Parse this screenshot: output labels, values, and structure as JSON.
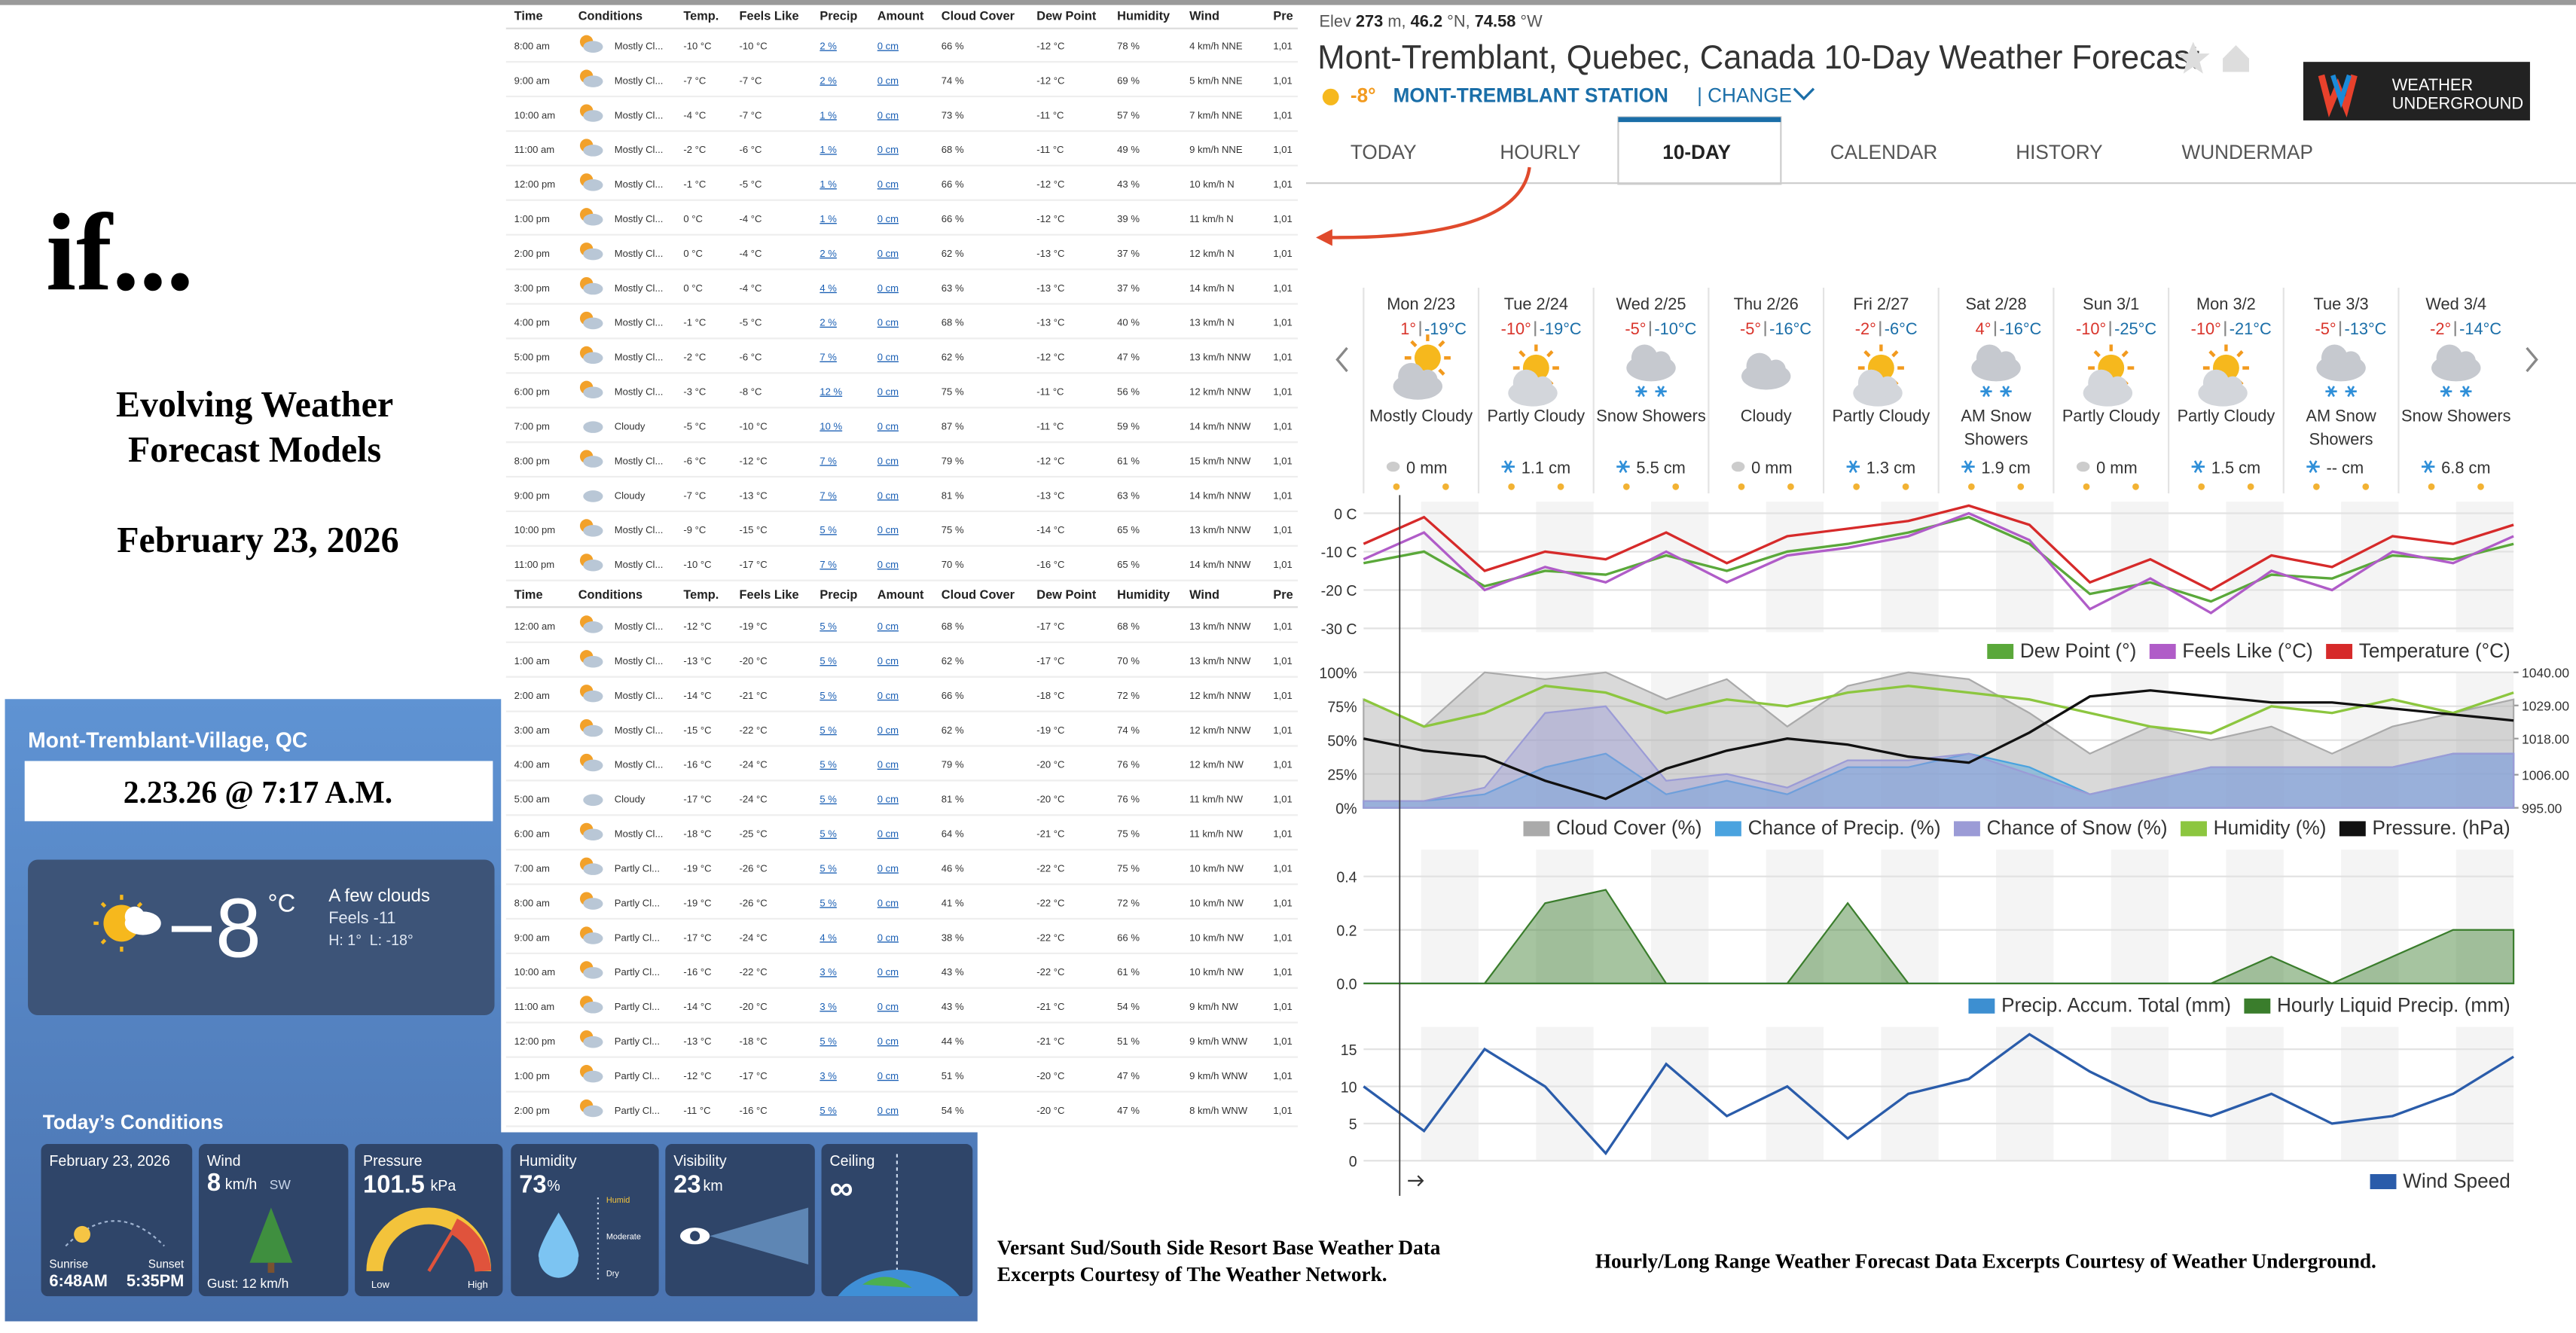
{
  "intro": {
    "heading": "if...",
    "subtitle_line1": "Evolving Weather",
    "subtitle_line2": "Forecast Models",
    "date": "February 23, 2026"
  },
  "twn_widget": {
    "location": "Mont-Tremblant-Village, QC",
    "timestamp": "2.23.26 @ 7:17 A.M.",
    "temperature": "−8",
    "unit": "°C",
    "condition": "A few clouds",
    "feels": "Feels -11",
    "high": "H: 1°",
    "low": "L: -18°",
    "section_title": "Today’s Conditions",
    "date_card": {
      "date": "February 23, 2026",
      "sunrise_label": "Sunrise",
      "sunrise": "6:48AM",
      "sunset_label": "Sunset",
      "sunset": "5:35PM"
    },
    "wind_card": {
      "label": "Wind",
      "speed": "8",
      "unit": "km/h",
      "direction": "SW",
      "gust": "Gust: 12 km/h"
    },
    "pressure_card": {
      "label": "Pressure",
      "value": "101.5",
      "unit": "kPa",
      "low": "Low",
      "high": "High"
    },
    "humidity_card": {
      "label": "Humidity",
      "value": "73",
      "unit": "%",
      "scale_high": "Humid",
      "scale_mid": "Moderate",
      "scale_low": "Dry"
    },
    "visibility_card": {
      "label": "Visibility",
      "value": "23",
      "unit": "km"
    },
    "ceiling_card": {
      "label": "Ceiling",
      "value": "∞"
    }
  },
  "hourly_table": {
    "headers": [
      "Time",
      "Conditions",
      "Temp.",
      "Feels Like",
      "Precip",
      "Amount",
      "Cloud Cover",
      "Dew Point",
      "Humidity",
      "Wind",
      "Pre"
    ],
    "sections": [
      {
        "rows": [
          [
            "8:00 am",
            "Mostly Cl...",
            "-10 °C",
            "-10 °C",
            "2 %",
            "0 cm",
            "66 %",
            "-12 °C",
            "78 %",
            "4 km/h NNE",
            "1,01"
          ],
          [
            "9:00 am",
            "Mostly Cl...",
            "-7 °C",
            "-7 °C",
            "2 %",
            "0 cm",
            "74 %",
            "-12 °C",
            "69 %",
            "5 km/h NNE",
            "1,01"
          ],
          [
            "10:00 am",
            "Mostly Cl...",
            "-4 °C",
            "-7 °C",
            "1 %",
            "0 cm",
            "73 %",
            "-11 °C",
            "57 %",
            "7 km/h NNE",
            "1,01"
          ],
          [
            "11:00 am",
            "Mostly Cl...",
            "-2 °C",
            "-6 °C",
            "1 %",
            "0 cm",
            "68 %",
            "-11 °C",
            "49 %",
            "9 km/h NNE",
            "1,01"
          ],
          [
            "12:00 pm",
            "Mostly Cl...",
            "-1 °C",
            "-5 °C",
            "1 %",
            "0 cm",
            "66 %",
            "-12 °C",
            "43 %",
            "10 km/h N",
            "1,01"
          ],
          [
            "1:00 pm",
            "Mostly Cl...",
            "0 °C",
            "-4 °C",
            "1 %",
            "0 cm",
            "66 %",
            "-12 °C",
            "39 %",
            "11 km/h N",
            "1,01"
          ],
          [
            "2:00 pm",
            "Mostly Cl...",
            "0 °C",
            "-4 °C",
            "2 %",
            "0 cm",
            "62 %",
            "-13 °C",
            "37 %",
            "12 km/h N",
            "1,01"
          ],
          [
            "3:00 pm",
            "Mostly Cl...",
            "0 °C",
            "-4 °C",
            "4 %",
            "0 cm",
            "63 %",
            "-13 °C",
            "37 %",
            "14 km/h N",
            "1,01"
          ],
          [
            "4:00 pm",
            "Mostly Cl...",
            "-1 °C",
            "-5 °C",
            "2 %",
            "0 cm",
            "68 %",
            "-13 °C",
            "40 %",
            "13 km/h N",
            "1,01"
          ],
          [
            "5:00 pm",
            "Mostly Cl...",
            "-2 °C",
            "-6 °C",
            "7 %",
            "0 cm",
            "62 %",
            "-12 °C",
            "47 %",
            "13 km/h NNW",
            "1,01"
          ],
          [
            "6:00 pm",
            "Mostly Cl...",
            "-3 °C",
            "-8 °C",
            "12 %",
            "0 cm",
            "75 %",
            "-11 °C",
            "56 %",
            "12 km/h NNW",
            "1,01"
          ],
          [
            "7:00 pm",
            "Cloudy",
            "-5 °C",
            "-10 °C",
            "10 %",
            "0 cm",
            "87 %",
            "-11 °C",
            "59 %",
            "14 km/h NNW",
            "1,01"
          ],
          [
            "8:00 pm",
            "Mostly Cl...",
            "-6 °C",
            "-12 °C",
            "7 %",
            "0 cm",
            "79 %",
            "-12 °C",
            "61 %",
            "15 km/h NNW",
            "1,01"
          ],
          [
            "9:00 pm",
            "Cloudy",
            "-7 °C",
            "-13 °C",
            "7 %",
            "0 cm",
            "81 %",
            "-13 °C",
            "63 %",
            "14 km/h NNW",
            "1,01"
          ],
          [
            "10:00 pm",
            "Mostly Cl...",
            "-9 °C",
            "-15 °C",
            "5 %",
            "0 cm",
            "75 %",
            "-14 °C",
            "65 %",
            "13 km/h NNW",
            "1,01"
          ],
          [
            "11:00 pm",
            "Mostly Cl...",
            "-10 °C",
            "-17 °C",
            "7 %",
            "0 cm",
            "70 %",
            "-16 °C",
            "65 %",
            "14 km/h NNW",
            "1,01"
          ]
        ]
      },
      {
        "rows": [
          [
            "12:00 am",
            "Mostly Cl...",
            "-12 °C",
            "-19 °C",
            "5 %",
            "0 cm",
            "68 %",
            "-17 °C",
            "68 %",
            "13 km/h NNW",
            "1,01"
          ],
          [
            "1:00 am",
            "Mostly Cl...",
            "-13 °C",
            "-20 °C",
            "5 %",
            "0 cm",
            "62 %",
            "-17 °C",
            "70 %",
            "13 km/h NNW",
            "1,01"
          ],
          [
            "2:00 am",
            "Mostly Cl...",
            "-14 °C",
            "-21 °C",
            "5 %",
            "0 cm",
            "66 %",
            "-18 °C",
            "72 %",
            "12 km/h NNW",
            "1,01"
          ],
          [
            "3:00 am",
            "Mostly Cl...",
            "-15 °C",
            "-22 °C",
            "5 %",
            "0 cm",
            "62 %",
            "-19 °C",
            "74 %",
            "12 km/h NNW",
            "1,01"
          ],
          [
            "4:00 am",
            "Mostly Cl...",
            "-16 °C",
            "-24 °C",
            "5 %",
            "0 cm",
            "79 %",
            "-20 °C",
            "76 %",
            "12 km/h NW",
            "1,01"
          ],
          [
            "5:00 am",
            "Cloudy",
            "-17 °C",
            "-24 °C",
            "5 %",
            "0 cm",
            "81 %",
            "-20 °C",
            "76 %",
            "11 km/h NW",
            "1,01"
          ],
          [
            "6:00 am",
            "Mostly Cl...",
            "-18 °C",
            "-25 °C",
            "5 %",
            "0 cm",
            "64 %",
            "-21 °C",
            "75 %",
            "11 km/h NW",
            "1,01"
          ],
          [
            "7:00 am",
            "Partly Cl...",
            "-19 °C",
            "-26 °C",
            "5 %",
            "0 cm",
            "46 %",
            "-22 °C",
            "75 %",
            "10 km/h NW",
            "1,01"
          ],
          [
            "8:00 am",
            "Partly Cl...",
            "-19 °C",
            "-26 °C",
            "5 %",
            "0 cm",
            "41 %",
            "-22 °C",
            "72 %",
            "10 km/h NW",
            "1,01"
          ],
          [
            "9:00 am",
            "Partly Cl...",
            "-17 °C",
            "-24 °C",
            "4 %",
            "0 cm",
            "38 %",
            "-22 °C",
            "66 %",
            "10 km/h NW",
            "1,01"
          ],
          [
            "10:00 am",
            "Partly Cl...",
            "-16 °C",
            "-22 °C",
            "3 %",
            "0 cm",
            "43 %",
            "-22 °C",
            "61 %",
            "10 km/h NW",
            "1,01"
          ],
          [
            "11:00 am",
            "Partly Cl...",
            "-14 °C",
            "-20 °C",
            "3 %",
            "0 cm",
            "43 %",
            "-21 °C",
            "54 %",
            "9 km/h NW",
            "1,01"
          ],
          [
            "12:00 pm",
            "Partly Cl...",
            "-13 °C",
            "-18 °C",
            "5 %",
            "0 cm",
            "44 %",
            "-21 °C",
            "51 %",
            "9 km/h WNW",
            "1,01"
          ],
          [
            "1:00 pm",
            "Partly Cl...",
            "-12 °C",
            "-17 °C",
            "3 %",
            "0 cm",
            "51 %",
            "-20 °C",
            "47 %",
            "9 km/h WNW",
            "1,01"
          ],
          [
            "2:00 pm",
            "Partly Cl...",
            "-11 °C",
            "-16 °C",
            "5 %",
            "0 cm",
            "54 %",
            "-20 °C",
            "47 %",
            "8 km/h WNW",
            "1,01"
          ]
        ]
      }
    ]
  },
  "wu_header": {
    "elev_label": "Elev",
    "elevation": "273",
    "elev_unit": "m,",
    "latitude": "46.2",
    "lat_unit": "°N,",
    "longitude": "74.58",
    "lon_unit": "°W",
    "title": "Mont-Tremblant, Quebec, Canada 10-Day Weather Forecast",
    "current_temp": "-8°",
    "station": "MONT-TREMBLANT STATION",
    "change": "| CHANGE",
    "logo_line1": "WEATHER",
    "logo_line2": "UNDERGROUND",
    "tabs": [
      "TODAY",
      "HOURLY",
      "10-DAY",
      "CALENDAR",
      "HISTORY",
      "WUNDERMAP"
    ],
    "active_tab": 2
  },
  "forecast_days": [
    {
      "date": "Mon 2/23",
      "high": "1°",
      "low": "-19°C",
      "condition": "Mostly Cloudy",
      "precip": "0 mm"
    },
    {
      "date": "Tue 2/24",
      "high": "-10°",
      "low": "-19°C",
      "condition": "Partly Cloudy",
      "precip": "1.1 cm"
    },
    {
      "date": "Wed 2/25",
      "high": "-5°",
      "low": "-10°C",
      "condition": "Snow Showers",
      "precip": "5.5 cm"
    },
    {
      "date": "Thu 2/26",
      "high": "-5°",
      "low": "-16°C",
      "condition": "Cloudy",
      "precip": "0 mm"
    },
    {
      "date": "Fri 2/27",
      "high": "-2°",
      "low": "-6°C",
      "condition": "Partly Cloudy",
      "precip": "1.3 cm"
    },
    {
      "date": "Sat 2/28",
      "high": "4°",
      "low": "-16°C",
      "condition": "AM Snow Showers",
      "precip": "1.9 cm"
    },
    {
      "date": "Sun 3/1",
      "high": "-10°",
      "low": "-25°C",
      "condition": "Partly Cloudy",
      "precip": "0 mm"
    },
    {
      "date": "Mon 3/2",
      "high": "-10°",
      "low": "-21°C",
      "condition": "Partly Cloudy",
      "precip": "1.5 cm"
    },
    {
      "date": "Tue 3/3",
      "high": "-5°",
      "low": "-13°C",
      "condition": "AM Snow Showers",
      "precip": "-- cm"
    },
    {
      "date": "Wed 3/4",
      "high": "-2°",
      "low": "-14°C",
      "condition": "Snow Showers",
      "precip": "6.8 cm"
    }
  ],
  "chart_data": [
    {
      "type": "line",
      "ylim": [
        -31,
        3
      ],
      "yticks": [
        {
          "value": 0,
          "label": "0 C"
        },
        {
          "value": -10,
          "label": "-10 C"
        },
        {
          "value": -20,
          "label": "-20 C"
        },
        {
          "value": -30,
          "label": "-30 C"
        }
      ],
      "grid": true,
      "legend": "bottom-right",
      "series": [
        {
          "name": "Dew Point (°)",
          "color": "#5aa83a",
          "values": [
            -13,
            -10,
            -19,
            -15,
            -16,
            -11,
            -15,
            -10,
            -8,
            -5,
            -1,
            -8,
            -21,
            -18,
            -23,
            -16,
            -17,
            -11,
            -12,
            -8
          ]
        },
        {
          "name": "Feels Like (°C)",
          "color": "#b05cc8",
          "values": [
            -12,
            -5,
            -20,
            -14,
            -18,
            -10,
            -18,
            -11,
            -9,
            -6,
            0,
            -7,
            -25,
            -17,
            -26,
            -15,
            -20,
            -10,
            -13,
            -6
          ]
        },
        {
          "name": "Temperature (°C)",
          "color": "#d62a2a",
          "values": [
            -8,
            -1,
            -15,
            -10,
            -12,
            -5,
            -13,
            -6,
            -4,
            -2,
            2,
            -3,
            -18,
            -12,
            -20,
            -11,
            -14,
            -6,
            -8,
            -3
          ]
        }
      ]
    },
    {
      "type": "line",
      "ylim": [
        0,
        100
      ],
      "yticks": [
        {
          "value": 0,
          "label": "0%"
        },
        {
          "value": 25,
          "label": "25%"
        },
        {
          "value": 50,
          "label": "50%"
        },
        {
          "value": 75,
          "label": "75%"
        },
        {
          "value": 100,
          "label": "100%"
        }
      ],
      "y2lim": [
        995,
        1040
      ],
      "y2ticks": [
        {
          "value": 995,
          "label": "995.00"
        },
        {
          "value": 1006,
          "label": "1006.00"
        },
        {
          "value": 1018,
          "label": "1018.00"
        },
        {
          "value": 1029,
          "label": "1029.00"
        },
        {
          "value": 1040,
          "label": "1040.00"
        }
      ],
      "grid": true,
      "legend": "bottom-right",
      "series": [
        {
          "name": "Cloud Cover (%)",
          "color": "#aaaaaa",
          "fill": true,
          "values": [
            80,
            60,
            100,
            95,
            100,
            80,
            95,
            60,
            90,
            100,
            95,
            70,
            40,
            60,
            50,
            60,
            40,
            60,
            70,
            80
          ]
        },
        {
          "name": "Chance of Precip. (%)",
          "color": "#4aa3df",
          "fill": true,
          "values": [
            5,
            5,
            10,
            30,
            40,
            10,
            20,
            10,
            30,
            30,
            40,
            30,
            10,
            20,
            30,
            30,
            30,
            30,
            40,
            40
          ]
        },
        {
          "name": "Chance of Snow (%)",
          "color": "#9b9bd6",
          "fill": true,
          "values": [
            5,
            5,
            15,
            70,
            75,
            20,
            25,
            15,
            35,
            35,
            40,
            25,
            10,
            20,
            30,
            30,
            30,
            30,
            40,
            40
          ]
        },
        {
          "name": "Humidity (%)",
          "color": "#8cc63f",
          "values": [
            80,
            60,
            70,
            90,
            85,
            70,
            80,
            75,
            85,
            90,
            85,
            80,
            70,
            60,
            55,
            75,
            70,
            80,
            70,
            85
          ]
        },
        {
          "name": "Pressure. (hPa)",
          "color": "#111111",
          "axis": "y2",
          "values": [
            1018,
            1014,
            1012,
            1004,
            998,
            1008,
            1014,
            1018,
            1016,
            1012,
            1010,
            1020,
            1032,
            1034,
            1032,
            1030,
            1030,
            1028,
            1026,
            1024
          ]
        }
      ]
    },
    {
      "type": "line",
      "ylim": [
        0,
        0.5
      ],
      "yticks": [
        {
          "value": 0,
          "label": "0.0"
        },
        0.2,
        0.4
      ],
      "grid": true,
      "legend": "bottom-right",
      "series": [
        {
          "name": "Precip. Accum. Total (mm)",
          "color": "#3d8fd1",
          "fill": true,
          "values": [
            0,
            0,
            0,
            0,
            0,
            0,
            0,
            0,
            0,
            0,
            0,
            0,
            0,
            0,
            0,
            0,
            0,
            0,
            0,
            0
          ]
        },
        {
          "name": "Hourly Liquid Precip. (mm)",
          "color": "#3a7d2c",
          "fill": true,
          "values": [
            0,
            0,
            0,
            0.3,
            0.35,
            0,
            0,
            0,
            0.3,
            0,
            0,
            0,
            0,
            0,
            0,
            0.1,
            0,
            0.1,
            0.2,
            0.2
          ]
        }
      ]
    },
    {
      "type": "line",
      "ylim": [
        0,
        18
      ],
      "yticks": [
        0,
        5,
        10,
        15
      ],
      "grid": true,
      "legend": "bottom-right",
      "series": [
        {
          "name": "Wind Speed",
          "color": "#2a5caa",
          "values": [
            10,
            4,
            15,
            10,
            1,
            13,
            6,
            10,
            3,
            9,
            11,
            17,
            12,
            8,
            6,
            9,
            5,
            6,
            9,
            14
          ]
        }
      ]
    }
  ],
  "footer": {
    "twn_credit_line1": "Versant Sud/South Side Resort Base Weather Data",
    "twn_credit_line2": "Excerpts Courtesy of The Weather Network.",
    "wu_credit": "Hourly/Long Range Weather Forecast Data Excerpts Courtesy of Weather Underground."
  }
}
